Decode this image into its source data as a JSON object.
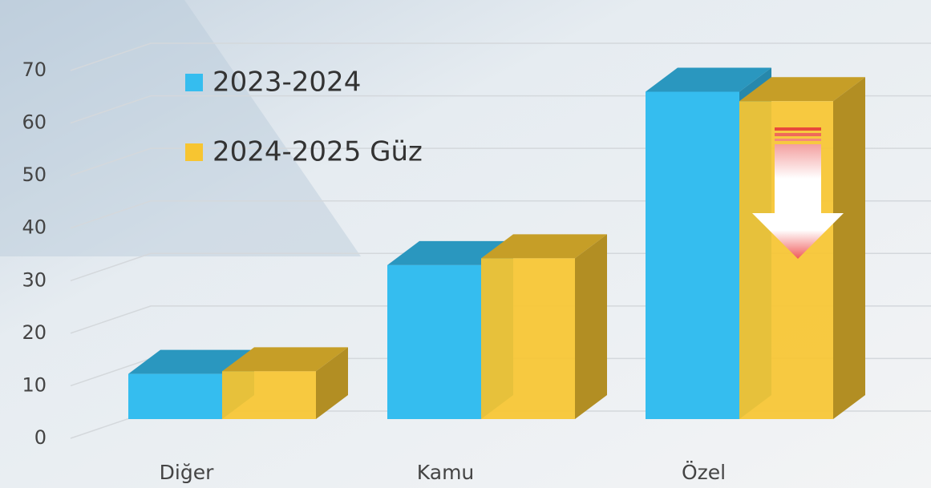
{
  "chart_data": {
    "type": "bar3d",
    "categories": [
      "Diğer",
      "Kamu",
      "Özel"
    ],
    "series": [
      {
        "name": "2023-2024",
        "color": "#35bdef",
        "values": [
          8.6,
          29.3,
          62.3
        ]
      },
      {
        "name": "2024-2025 Güz",
        "color": "#f7c531",
        "values": [
          9.1,
          30.6,
          60.5
        ]
      }
    ],
    "ylim": [
      0,
      70
    ],
    "yticks": [
      0,
      10,
      20,
      30,
      40,
      50,
      60,
      70
    ],
    "grid": true
  }
}
